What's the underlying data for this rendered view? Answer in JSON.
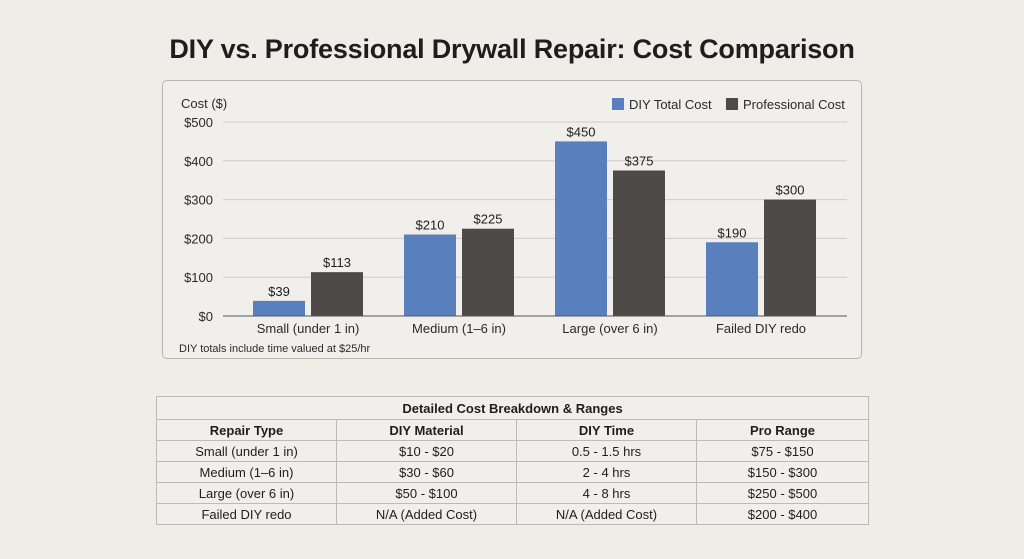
{
  "title": "DIY vs. Professional Drywall Repair: Cost Comparison",
  "colors": {
    "diy": "#5a7fbd",
    "pro": "#4d4a47",
    "grid": "#cfccc6",
    "background": "#efede8"
  },
  "chart_data": {
    "type": "bar",
    "ylabel": "Cost ($)",
    "xlabel": "",
    "categories": [
      "Small (under 1 in)",
      "Medium (1–6 in)",
      "Large (over 6 in)",
      "Failed DIY redo"
    ],
    "series": [
      {
        "name": "DIY Total Cost",
        "values": [
          39,
          210,
          450,
          190
        ],
        "labels": [
          "$39",
          "$210",
          "$450",
          "$190"
        ],
        "color": "#5a7fbd"
      },
      {
        "name": "Professional Cost",
        "values": [
          113,
          225,
          375,
          300
        ],
        "labels": [
          "$113",
          "$225",
          "$375",
          "$300"
        ],
        "color": "#4d4a47"
      }
    ],
    "ylim": [
      0,
      500
    ],
    "yticks": [
      0,
      100,
      200,
      300,
      400,
      500
    ],
    "ytick_labels": [
      "$0",
      "$100",
      "$200",
      "$300",
      "$400",
      "$500"
    ],
    "grid": true,
    "legend": "top-right",
    "note": "DIY totals include time valued at $25/hr"
  },
  "table": {
    "caption": "Detailed Cost Breakdown & Ranges",
    "headers": [
      "Repair Type",
      "DIY Material",
      "DIY Time",
      "Pro Range"
    ],
    "rows": [
      [
        "Small (under 1 in)",
        "$10 - $20",
        "0.5 - 1.5 hrs",
        "$75 - $150"
      ],
      [
        "Medium (1–6 in)",
        "$30 - $60",
        "2 - 4 hrs",
        "$150 - $300"
      ],
      [
        "Large (over 6 in)",
        "$50 - $100",
        "4 - 8 hrs",
        "$250 - $500"
      ],
      [
        "Failed DIY redo",
        "N/A (Added Cost)",
        "N/A (Added Cost)",
        "$200 - $400"
      ]
    ]
  }
}
